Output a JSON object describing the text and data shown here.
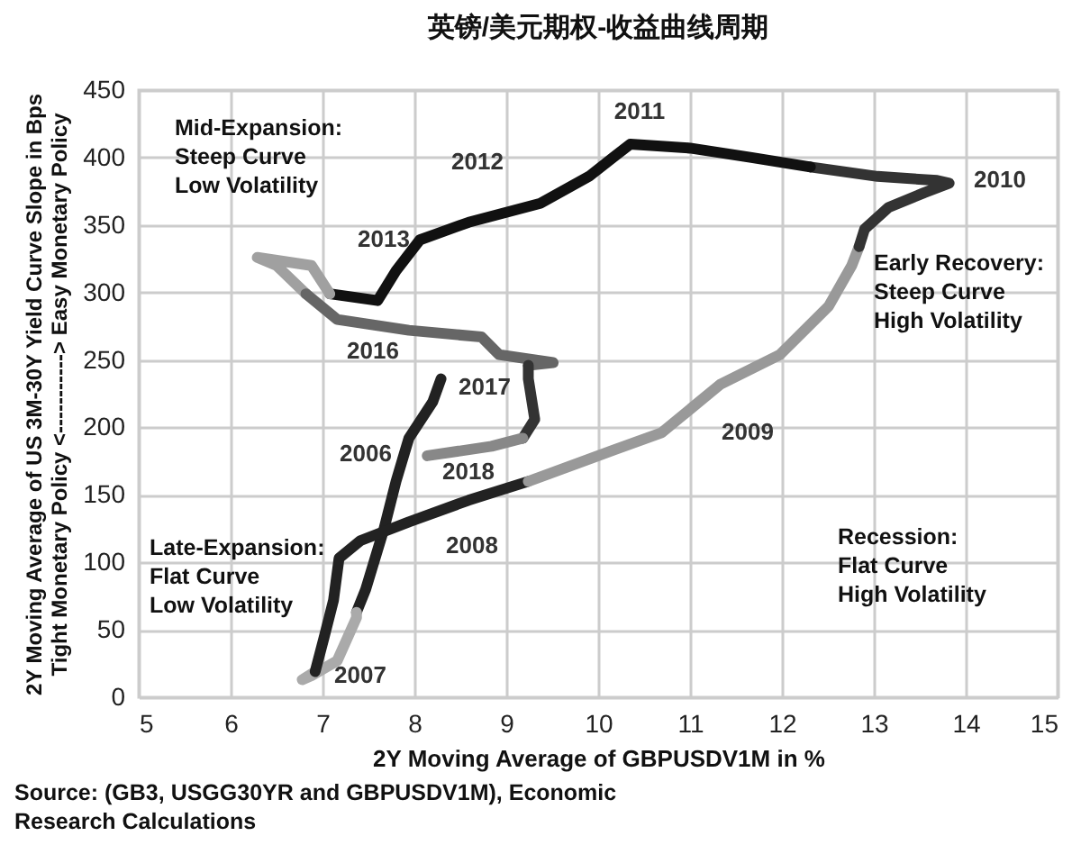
{
  "chart_data": {
    "type": "line",
    "title": "英镑/美元期权-收益曲线周期",
    "xlabel": "2Y Moving Average of GBPUSDV1M in %",
    "ylabel": "2Y Moving Average of US 3M-30Y Yield Curve Slope in Bps\nTight Monetary Policy <-----------> Easy Monetary Policy",
    "xlim": [
      5,
      15
    ],
    "xticks": [
      5,
      6,
      7,
      8,
      9,
      10,
      11,
      12,
      13,
      14,
      15
    ],
    "ylim": [
      0,
      450
    ],
    "yticks": [
      0,
      50,
      100,
      150,
      200,
      250,
      300,
      350,
      400,
      450
    ],
    "grid": true,
    "series": [
      {
        "color": "#222222",
        "x": [
          8.29,
          8.2,
          7.94,
          7.8,
          7.67,
          7.47,
          7.37
        ],
        "values": [
          236,
          219,
          192,
          160,
          125,
          80,
          63
        ]
      },
      {
        "color": "#aaaaaa",
        "x": [
          7.37,
          7.37,
          7.16,
          6.88,
          6.78,
          6.92
        ],
        "values": [
          63,
          59,
          27,
          16,
          13,
          19
        ]
      },
      {
        "color": "#222222",
        "x": [
          6.92,
          7.02,
          7.12,
          7.18,
          7.41,
          7.94,
          8.59,
          9.24
        ],
        "values": [
          19,
          45,
          72,
          103,
          116,
          130,
          146,
          160
        ]
      },
      {
        "color": "#999999",
        "x": [
          9.24,
          10.16,
          10.69,
          11.33,
          11.98,
          12.51,
          12.76,
          12.84
        ],
        "values": [
          160,
          183,
          196,
          232,
          254,
          290,
          320,
          334
        ]
      },
      {
        "color": "#333333",
        "x": [
          12.84,
          12.9,
          13.16,
          13.55,
          13.82,
          13.69,
          13.04,
          12.31
        ],
        "values": [
          334,
          347,
          363,
          374,
          381,
          383,
          386,
          393
        ]
      },
      {
        "color": "#111111",
        "x": [
          12.31,
          11.67,
          11.0,
          10.35,
          10.16,
          9.9,
          9.37,
          8.59,
          8.06,
          7.8,
          7.6,
          7.08
        ],
        "values": [
          393,
          400,
          407,
          410,
          400,
          386,
          366,
          352,
          339,
          316,
          294,
          299
        ]
      },
      {
        "color": "#a0a0a0",
        "x": [
          7.08,
          6.88,
          6.29,
          6.5,
          6.82
        ],
        "values": [
          299,
          320,
          326,
          320,
          299
        ]
      },
      {
        "color": "#666666",
        "x": [
          6.82,
          7.16,
          7.94,
          8.73,
          8.92,
          9.51,
          9.24
        ],
        "values": [
          299,
          280,
          272,
          267,
          254,
          248,
          246
        ]
      },
      {
        "color": "#333333",
        "x": [
          9.24,
          9.24,
          9.31,
          9.18
        ],
        "values": [
          246,
          236,
          206,
          192
        ]
      },
      {
        "color": "#888888",
        "x": [
          9.18,
          8.84,
          8.14
        ],
        "values": [
          192,
          186,
          179
        ]
      }
    ],
    "annotations": [
      "Mid-Expansion:\nSteep Curve\nLow Volatility",
      "Early Recovery:\nSteep Curve\nHigh Volatility",
      "Late-Expansion:\nFlat Curve\nLow Volatility",
      "Recession:\nFlat Curve\nHigh Volatility",
      "Source: (GB3, USGG30YR and GBPUSDV1M), Economic\nResearch Calculations",
      "2011",
      "2012",
      "2010",
      "2013",
      "2016",
      "2017",
      "2018",
      "2006",
      "2009",
      "2008",
      "2007"
    ]
  }
}
